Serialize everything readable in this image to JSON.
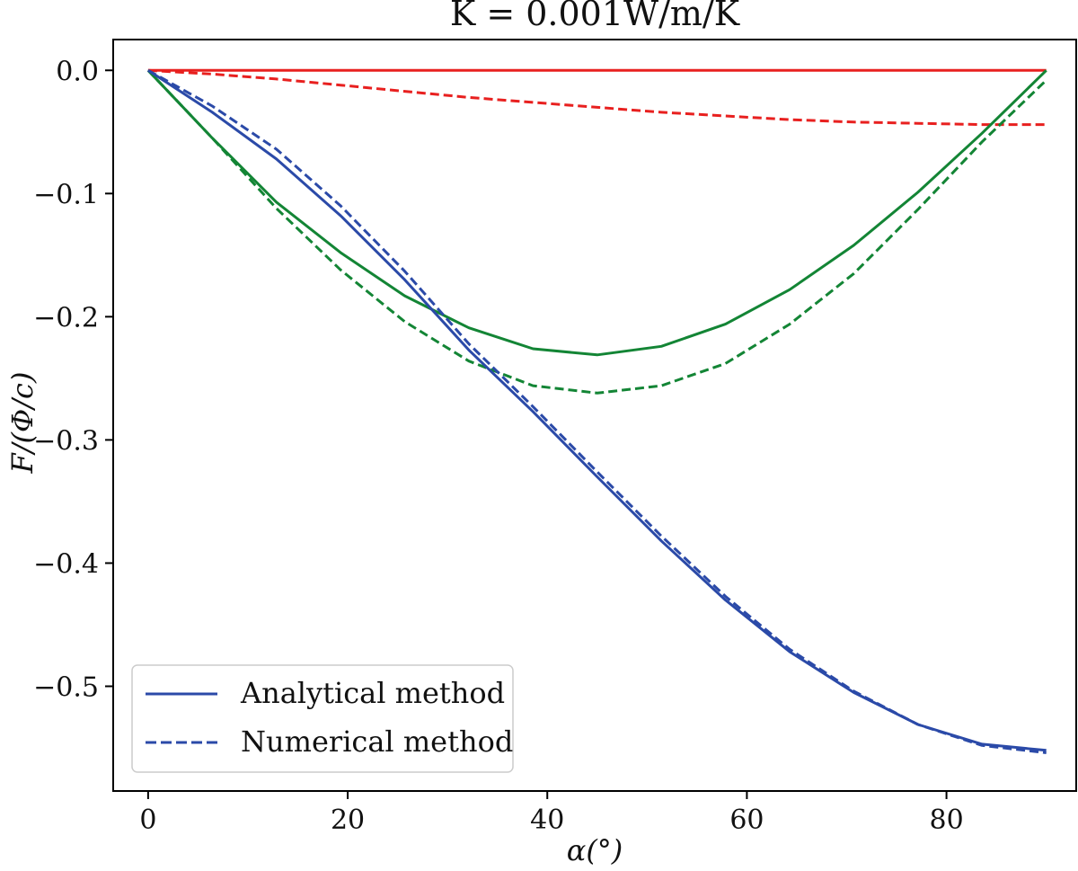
{
  "chart_data": {
    "type": "line",
    "title": "K = 0.001W/m/K",
    "xlabel": "α(°)",
    "ylabel": "F/(Φ/c)",
    "xlim": [
      -3.5,
      93
    ],
    "ylim": [
      -0.585,
      0.025
    ],
    "xticks": [
      0,
      20,
      40,
      60,
      80
    ],
    "xtick_labels": [
      "0",
      "20",
      "40",
      "60",
      "80"
    ],
    "yticks": [
      0.0,
      -0.1,
      -0.2,
      -0.3,
      -0.4,
      -0.5
    ],
    "ytick_labels": [
      "0.0",
      "−0.1",
      "−0.2",
      "−0.3",
      "−0.4",
      "−0.5"
    ],
    "grid": false,
    "legend": {
      "location": "lower-left",
      "entries": [
        {
          "label": "Analytical method",
          "style": "solid",
          "color": "#2b4aa8"
        },
        {
          "label": "Numerical method",
          "style": "dashed",
          "color": "#2b4aa8"
        }
      ]
    },
    "x": [
      0,
      6.43,
      12.86,
      19.29,
      25.71,
      32.14,
      38.57,
      45,
      51.43,
      57.86,
      64.29,
      70.71,
      77.14,
      83.57,
      90
    ],
    "series": [
      {
        "name": "blue analytical",
        "color": "#2b4aa8",
        "style": "solid",
        "values": [
          0,
          -0.034,
          -0.072,
          -0.118,
          -0.17,
          -0.227,
          -0.277,
          -0.33,
          -0.382,
          -0.43,
          -0.472,
          -0.505,
          -0.531,
          -0.547,
          -0.552
        ]
      },
      {
        "name": "blue numerical",
        "color": "#2b4aa8",
        "style": "dashed",
        "values": [
          0,
          -0.029,
          -0.064,
          -0.11,
          -0.163,
          -0.222,
          -0.273,
          -0.326,
          -0.378,
          -0.427,
          -0.47,
          -0.504,
          -0.531,
          -0.548,
          -0.554
        ]
      },
      {
        "name": "green analytical",
        "color": "#138535",
        "style": "solid",
        "values": [
          0,
          -0.055,
          -0.107,
          -0.148,
          -0.183,
          -0.209,
          -0.226,
          -0.231,
          -0.224,
          -0.206,
          -0.178,
          -0.142,
          -0.099,
          -0.051,
          0
        ]
      },
      {
        "name": "green numerical",
        "color": "#138535",
        "style": "dashed",
        "values": [
          0,
          -0.055,
          -0.112,
          -0.162,
          -0.204,
          -0.236,
          -0.256,
          -0.262,
          -0.256,
          -0.238,
          -0.206,
          -0.165,
          -0.113,
          -0.058,
          -0.008
        ]
      },
      {
        "name": "red analytical",
        "color": "#e8201f",
        "style": "solid",
        "values": [
          0,
          0,
          0,
          0,
          0,
          0,
          0,
          0,
          0,
          0,
          0,
          0,
          0,
          0,
          0
        ]
      },
      {
        "name": "red numerical",
        "color": "#e8201f",
        "style": "dashed",
        "values": [
          0,
          -0.003,
          -0.007,
          -0.012,
          -0.017,
          -0.022,
          -0.026,
          -0.03,
          -0.034,
          -0.037,
          -0.04,
          -0.042,
          -0.043,
          -0.044,
          -0.044
        ]
      }
    ]
  }
}
